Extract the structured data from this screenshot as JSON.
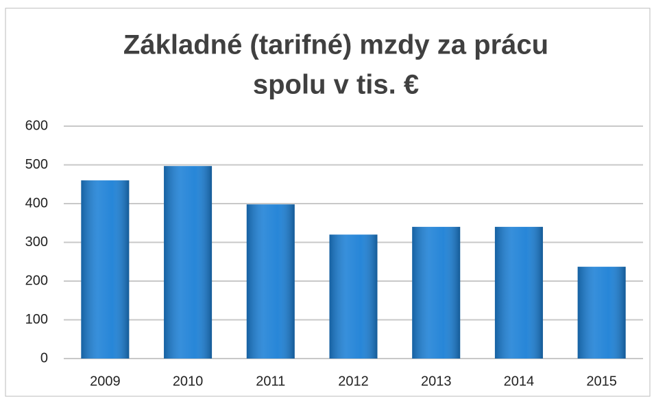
{
  "chart_data": {
    "type": "bar",
    "title": [
      "Základné (tarifné) mzdy za prácu",
      "spolu v tis.  €"
    ],
    "categories": [
      "2009",
      "2010",
      "2011",
      "2012",
      "2013",
      "2014",
      "2015"
    ],
    "values": [
      460,
      497,
      398,
      320,
      340,
      340,
      237
    ],
    "color": "#1c80d6",
    "ylim": [
      0,
      600
    ],
    "yticks": [
      0,
      100,
      200,
      300,
      400,
      500,
      600
    ],
    "grid": true
  }
}
